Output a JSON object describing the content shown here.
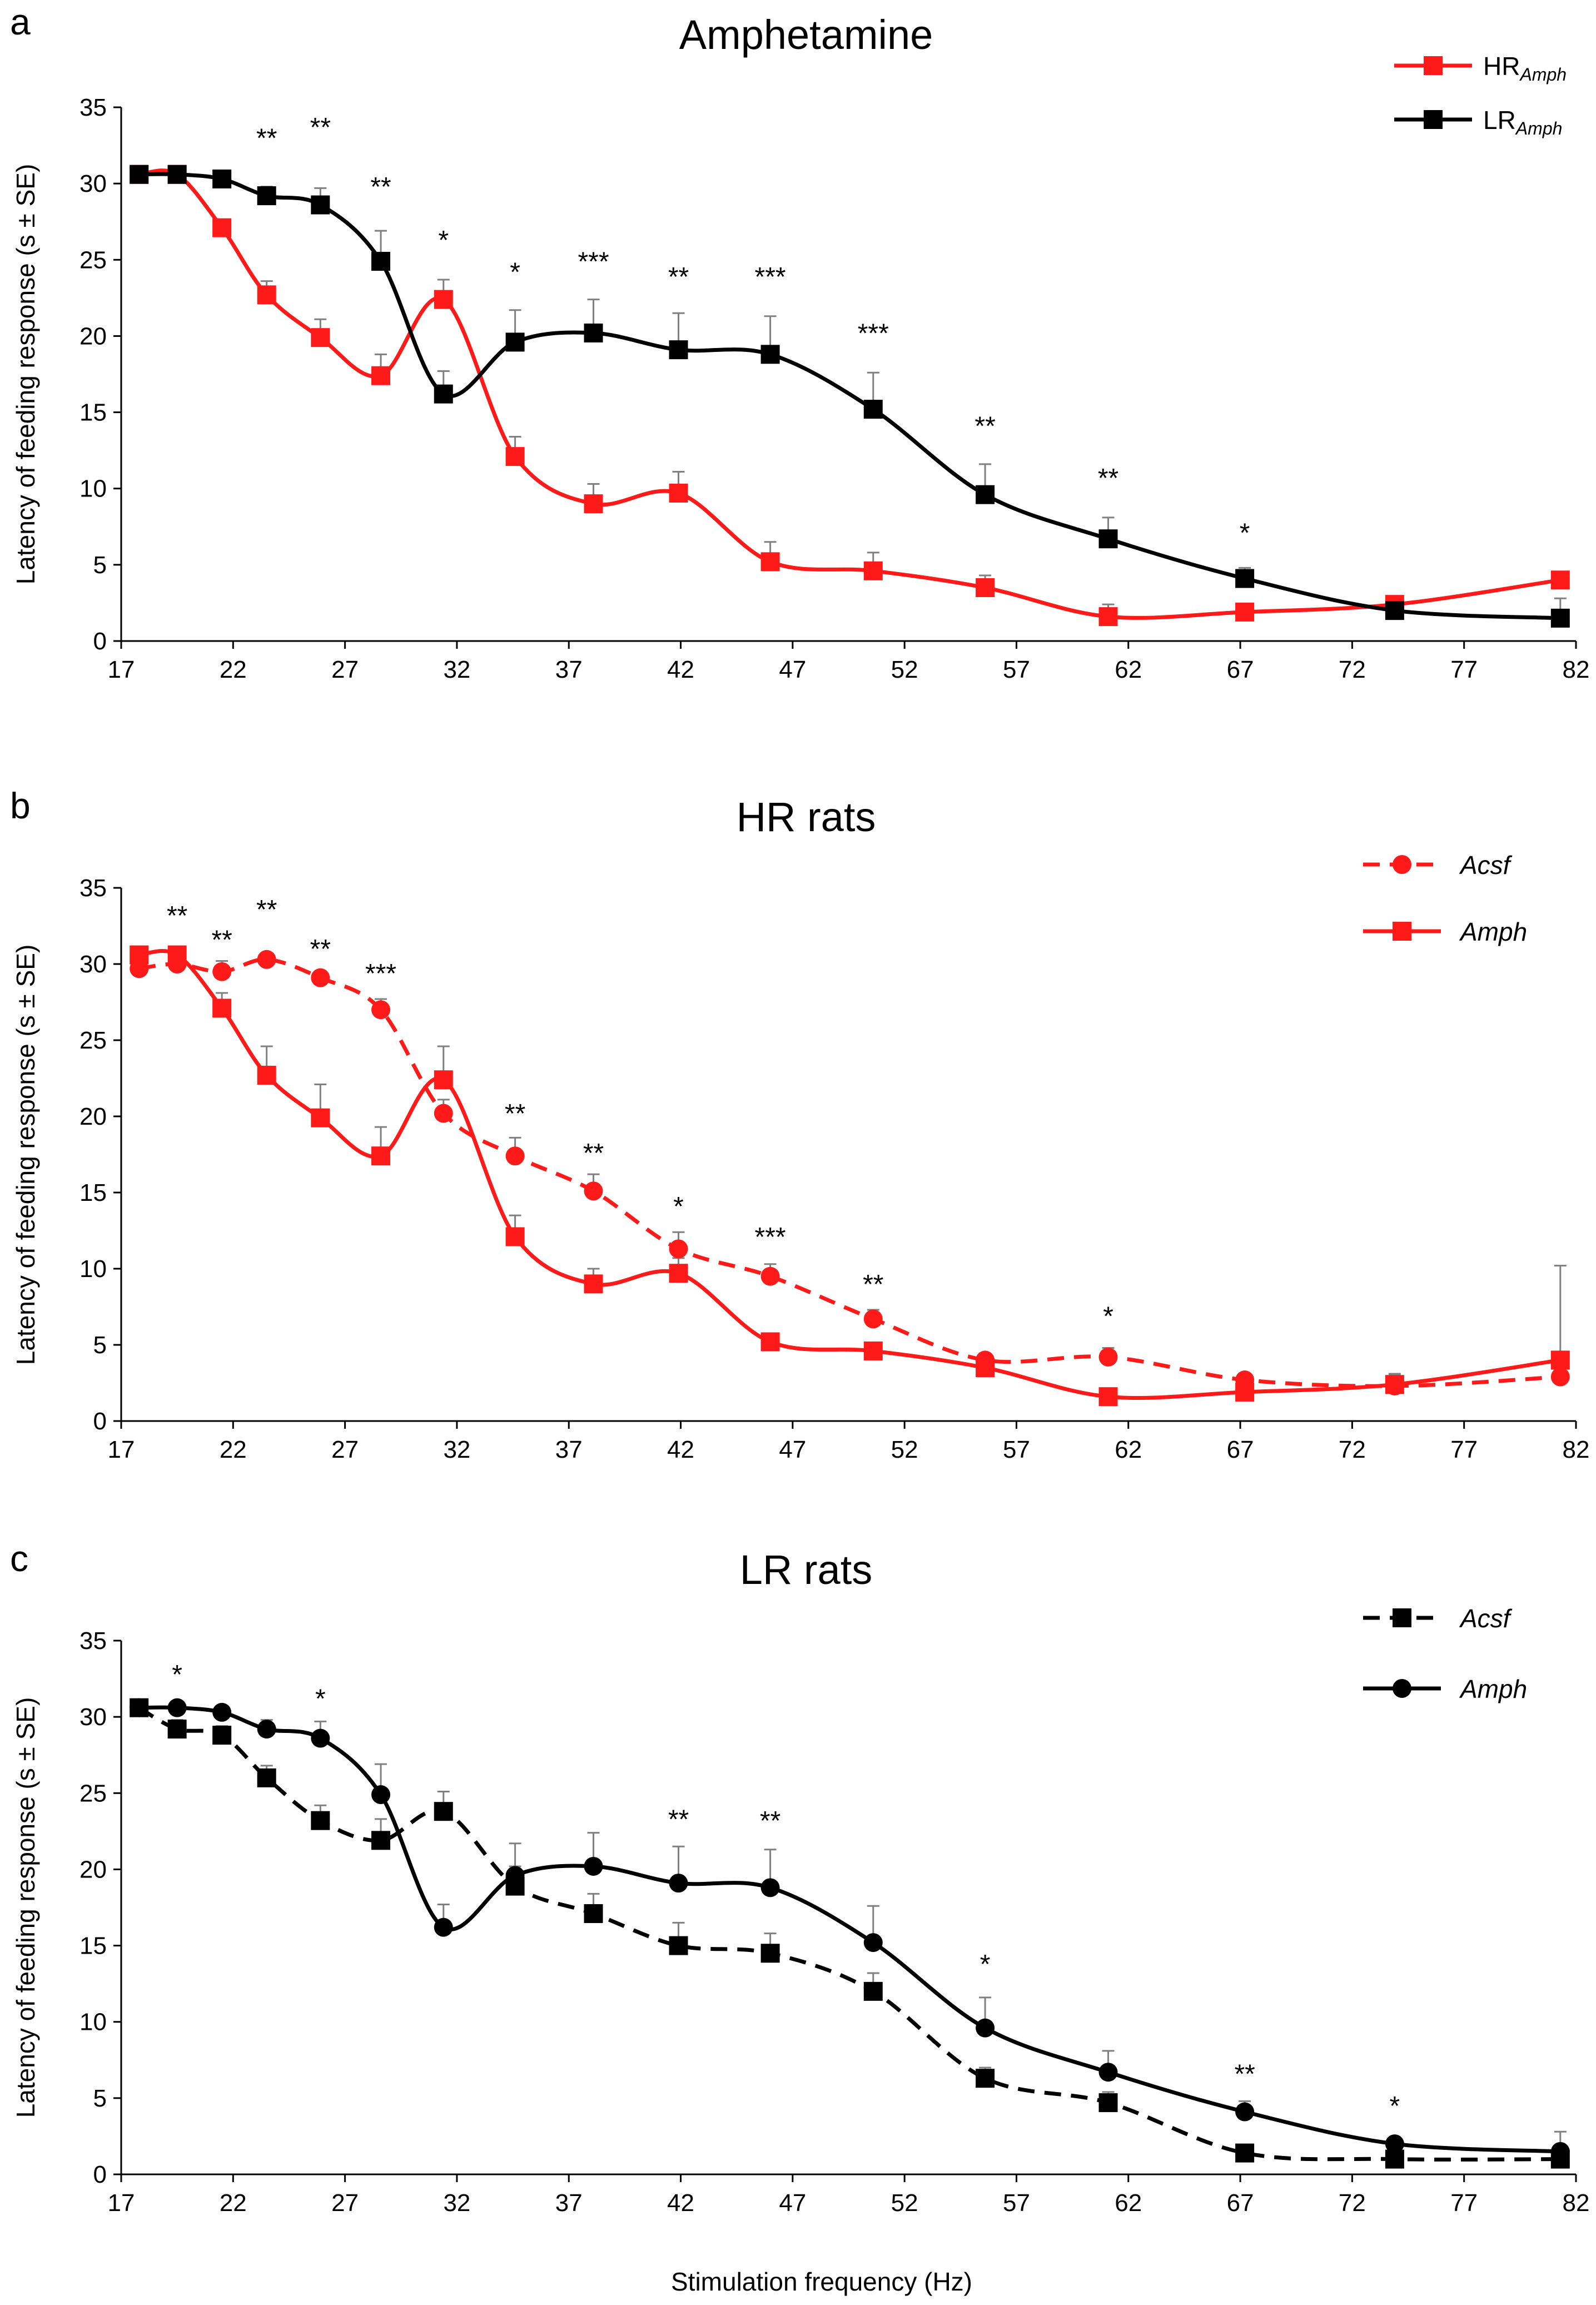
{
  "colors": {
    "red": "#ff1a1a",
    "black": "#000000",
    "errorbar": "#808080"
  },
  "shared": {
    "ylabel": "Latency of feeding response (s ± SE)",
    "xlabel": "Stimulation frequency (Hz)"
  },
  "chart_data": [
    {
      "letter": "a",
      "type": "line",
      "title": "Amphetamine",
      "xlim": [
        17,
        82
      ],
      "ylim": [
        0,
        35
      ],
      "x_ticks": [
        17,
        22,
        27,
        32,
        37,
        42,
        47,
        52,
        57,
        62,
        67,
        72,
        77,
        82
      ],
      "y_ticks": [
        0,
        5,
        10,
        15,
        20,
        25,
        30,
        35
      ],
      "series": [
        {
          "name": "HR",
          "name_sub": "Amph",
          "color": "#ff1a1a",
          "marker": "square",
          "dashed": false,
          "x": [
            17.8,
            19.5,
            21.5,
            23.5,
            25.9,
            28.6,
            31.4,
            34.6,
            38.1,
            41.9,
            46.0,
            50.6,
            55.6,
            61.1,
            67.2,
            73.9,
            81.3
          ],
          "y": [
            30.6,
            30.6,
            27.1,
            22.7,
            19.9,
            17.4,
            22.4,
            12.1,
            9.0,
            9.7,
            5.2,
            4.6,
            3.5,
            1.6,
            1.9,
            2.4,
            4.0
          ],
          "err": [
            0.3,
            0.3,
            0.5,
            0.9,
            1.2,
            1.4,
            1.3,
            1.3,
            1.3,
            1.4,
            1.3,
            1.2,
            0.8,
            0.8,
            0.0,
            0.5,
            0.0
          ]
        },
        {
          "name": "LR",
          "name_sub": "Amph",
          "color": "#000000",
          "marker": "square",
          "dashed": false,
          "x": [
            17.8,
            19.5,
            21.5,
            23.5,
            25.9,
            28.6,
            31.4,
            34.6,
            38.1,
            41.9,
            46.0,
            50.6,
            55.6,
            61.1,
            67.2,
            73.9,
            81.3
          ],
          "y": [
            30.6,
            30.6,
            30.3,
            29.2,
            28.6,
            24.9,
            16.2,
            19.6,
            20.2,
            19.1,
            18.8,
            15.2,
            9.6,
            6.7,
            4.1,
            2.0,
            1.5
          ],
          "err": [
            0.3,
            0.3,
            0.3,
            0.6,
            1.1,
            2.0,
            1.5,
            2.1,
            2.2,
            2.4,
            2.5,
            2.4,
            2.0,
            1.4,
            0.7,
            0.3,
            1.3
          ]
        }
      ],
      "significance": [
        {
          "x": 23.5,
          "y": 32.4,
          "label": "**"
        },
        {
          "x": 25.9,
          "y": 33.1,
          "label": "**"
        },
        {
          "x": 28.6,
          "y": 29.2,
          "label": "**"
        },
        {
          "x": 31.4,
          "y": 25.7,
          "label": "*"
        },
        {
          "x": 34.6,
          "y": 23.6,
          "label": "*"
        },
        {
          "x": 38.1,
          "y": 24.3,
          "label": "***"
        },
        {
          "x": 41.9,
          "y": 23.3,
          "label": "**"
        },
        {
          "x": 46.0,
          "y": 23.3,
          "label": "***"
        },
        {
          "x": 50.6,
          "y": 19.6,
          "label": "***"
        },
        {
          "x": 55.6,
          "y": 13.5,
          "label": "**"
        },
        {
          "x": 61.1,
          "y": 10.1,
          "label": "**"
        },
        {
          "x": 67.2,
          "y": 6.5,
          "label": "*"
        }
      ]
    },
    {
      "letter": "b",
      "type": "line",
      "title": "HR rats",
      "xlim": [
        17,
        82
      ],
      "ylim": [
        0,
        35
      ],
      "x_ticks": [
        17,
        22,
        27,
        32,
        37,
        42,
        47,
        52,
        57,
        62,
        67,
        72,
        77,
        82
      ],
      "y_ticks": [
        0,
        5,
        10,
        15,
        20,
        25,
        30,
        35
      ],
      "series": [
        {
          "name": "Acsf",
          "color": "#ff1a1a",
          "marker": "circle",
          "dashed": true,
          "x": [
            17.8,
            19.5,
            21.5,
            23.5,
            25.9,
            28.6,
            31.4,
            34.6,
            38.1,
            41.9,
            46.0,
            50.6,
            55.6,
            61.1,
            67.2,
            73.9,
            81.3
          ],
          "y": [
            29.7,
            30.0,
            29.5,
            30.3,
            29.1,
            27.0,
            20.2,
            17.4,
            15.1,
            11.3,
            9.5,
            6.7,
            4.0,
            4.2,
            2.7,
            2.3,
            2.9
          ],
          "err": [
            0.4,
            0.6,
            0.7,
            0.3,
            0.4,
            0.7,
            0.9,
            1.2,
            1.1,
            1.1,
            0.8,
            0.6,
            0.0,
            0.6,
            0.0,
            0.8,
            0.0
          ]
        },
        {
          "name": "Amph",
          "color": "#ff1a1a",
          "marker": "square",
          "dashed": false,
          "x": [
            17.8,
            19.5,
            21.5,
            23.5,
            25.9,
            28.6,
            31.4,
            34.6,
            38.1,
            41.9,
            46.0,
            50.6,
            55.6,
            61.1,
            67.2,
            73.9,
            81.3
          ],
          "y": [
            30.6,
            30.6,
            27.1,
            22.7,
            19.9,
            17.4,
            22.4,
            12.1,
            9.0,
            9.7,
            5.2,
            4.6,
            3.5,
            1.6,
            1.9,
            2.4,
            4.0
          ],
          "err": [
            0.3,
            0.3,
            1.0,
            1.9,
            2.2,
            1.9,
            2.2,
            1.4,
            1.0,
            1.0,
            0.3,
            0.3,
            0.4,
            0.3,
            0.3,
            0.6,
            6.2
          ]
        }
      ],
      "significance": [
        {
          "x": 19.5,
          "y": 32.6,
          "label": "**"
        },
        {
          "x": 21.5,
          "y": 31.0,
          "label": "**"
        },
        {
          "x": 23.5,
          "y": 33.0,
          "label": "**"
        },
        {
          "x": 25.9,
          "y": 30.4,
          "label": "**"
        },
        {
          "x": 28.6,
          "y": 28.8,
          "label": "***"
        },
        {
          "x": 34.6,
          "y": 19.6,
          "label": "**"
        },
        {
          "x": 38.1,
          "y": 17.0,
          "label": "**"
        },
        {
          "x": 41.9,
          "y": 13.5,
          "label": "*"
        },
        {
          "x": 46.0,
          "y": 11.5,
          "label": "***"
        },
        {
          "x": 50.6,
          "y": 8.4,
          "label": "**"
        },
        {
          "x": 61.1,
          "y": 6.3,
          "label": "*"
        }
      ]
    },
    {
      "letter": "c",
      "type": "line",
      "title": "LR rats",
      "xlim": [
        17,
        82
      ],
      "ylim": [
        0,
        35
      ],
      "x_ticks": [
        17,
        22,
        27,
        32,
        37,
        42,
        47,
        52,
        57,
        62,
        67,
        72,
        77,
        82
      ],
      "y_ticks": [
        0,
        5,
        10,
        15,
        20,
        25,
        30,
        35
      ],
      "series": [
        {
          "name": "Acsf",
          "color": "#000000",
          "marker": "square",
          "dashed": true,
          "x": [
            17.8,
            19.5,
            21.5,
            23.5,
            25.9,
            28.6,
            31.4,
            34.6,
            38.1,
            41.9,
            46.0,
            50.6,
            55.6,
            61.1,
            67.2,
            73.9,
            81.3
          ],
          "y": [
            30.6,
            29.2,
            28.8,
            26.0,
            23.2,
            21.9,
            23.8,
            18.9,
            17.1,
            15.0,
            14.5,
            12.0,
            6.3,
            4.7,
            1.4,
            1.0,
            1.0
          ],
          "err": [
            0.3,
            0.6,
            0.6,
            0.8,
            1.0,
            1.4,
            1.3,
            1.3,
            1.3,
            1.5,
            1.3,
            1.2,
            0.7,
            0.7,
            0.0,
            0.0,
            0.0
          ]
        },
        {
          "name": "Amph",
          "color": "#000000",
          "marker": "circle",
          "dashed": false,
          "x": [
            17.8,
            19.5,
            21.5,
            23.5,
            25.9,
            28.6,
            31.4,
            34.6,
            38.1,
            41.9,
            46.0,
            50.6,
            55.6,
            61.1,
            67.2,
            73.9,
            81.3
          ],
          "y": [
            30.6,
            30.6,
            30.3,
            29.2,
            28.6,
            24.9,
            16.2,
            19.6,
            20.2,
            19.1,
            18.8,
            15.2,
            9.6,
            6.7,
            4.1,
            2.0,
            1.5
          ],
          "err": [
            0.3,
            0.3,
            0.3,
            0.6,
            1.1,
            2.0,
            1.5,
            2.1,
            2.2,
            2.4,
            2.5,
            2.4,
            2.0,
            1.4,
            0.7,
            0.3,
            1.3
          ]
        }
      ],
      "significance": [
        {
          "x": 19.5,
          "y": 32.2,
          "label": "*"
        },
        {
          "x": 25.9,
          "y": 30.6,
          "label": "*"
        },
        {
          "x": 41.9,
          "y": 22.7,
          "label": "**"
        },
        {
          "x": 46.0,
          "y": 22.6,
          "label": "**"
        },
        {
          "x": 55.6,
          "y": 13.2,
          "label": "*"
        },
        {
          "x": 67.2,
          "y": 6.0,
          "label": "**"
        },
        {
          "x": 73.9,
          "y": 3.9,
          "label": "*"
        }
      ]
    }
  ]
}
